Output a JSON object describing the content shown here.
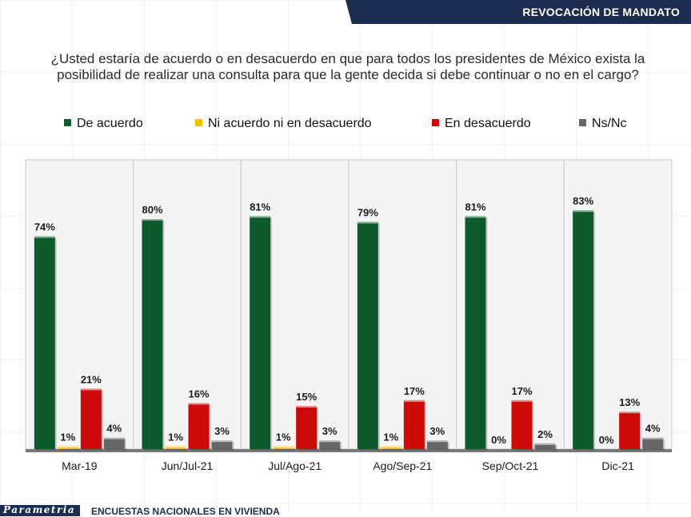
{
  "header": {
    "title": "REVOCACIÓN DE MANDATO"
  },
  "question": "¿Usted estaría de acuerdo o en desacuerdo en que para todos los presidentes de México exista la posibilidad de realizar una consulta para que la gente decida si debe continuar o no en el cargo?",
  "footer": {
    "brand": "Parametria",
    "text": "ENCUESTAS NACIONALES EN VIVIENDA"
  },
  "chart_data": {
    "type": "bar",
    "title": "",
    "xlabel": "",
    "ylabel": "",
    "ylim": [
      0,
      100
    ],
    "grid": false,
    "legend_position": "top",
    "categories": [
      "Mar-19",
      "Jun/Jul-21",
      "Jul/Ago-21",
      "Ago/Sep-21",
      "Sep/Oct-21",
      "Dic-21"
    ],
    "series": [
      {
        "name": "De acuerdo",
        "color": "#0e5a2c",
        "values": [
          74,
          80,
          81,
          79,
          81,
          83
        ],
        "labels": [
          "74%",
          "80%",
          "81%",
          "79%",
          "81%",
          "83%"
        ]
      },
      {
        "name": "Ni acuerdo ni en desacuerdo",
        "color": "#f2c200",
        "values": [
          1,
          1,
          1,
          1,
          0,
          0
        ],
        "labels": [
          "1%",
          "1%",
          "1%",
          "1%",
          "0%",
          "0%"
        ]
      },
      {
        "name": "En desacuerdo",
        "color": "#cc0a0a",
        "values": [
          21,
          16,
          15,
          17,
          17,
          13
        ],
        "labels": [
          "21%",
          "16%",
          "15%",
          "17%",
          "17%",
          "13%"
        ]
      },
      {
        "name": "Ns/Nc",
        "color": "#666666",
        "values": [
          4,
          3,
          3,
          3,
          2,
          4
        ],
        "labels": [
          "4%",
          "3%",
          "3%",
          "3%",
          "2%",
          "4%"
        ]
      }
    ]
  }
}
